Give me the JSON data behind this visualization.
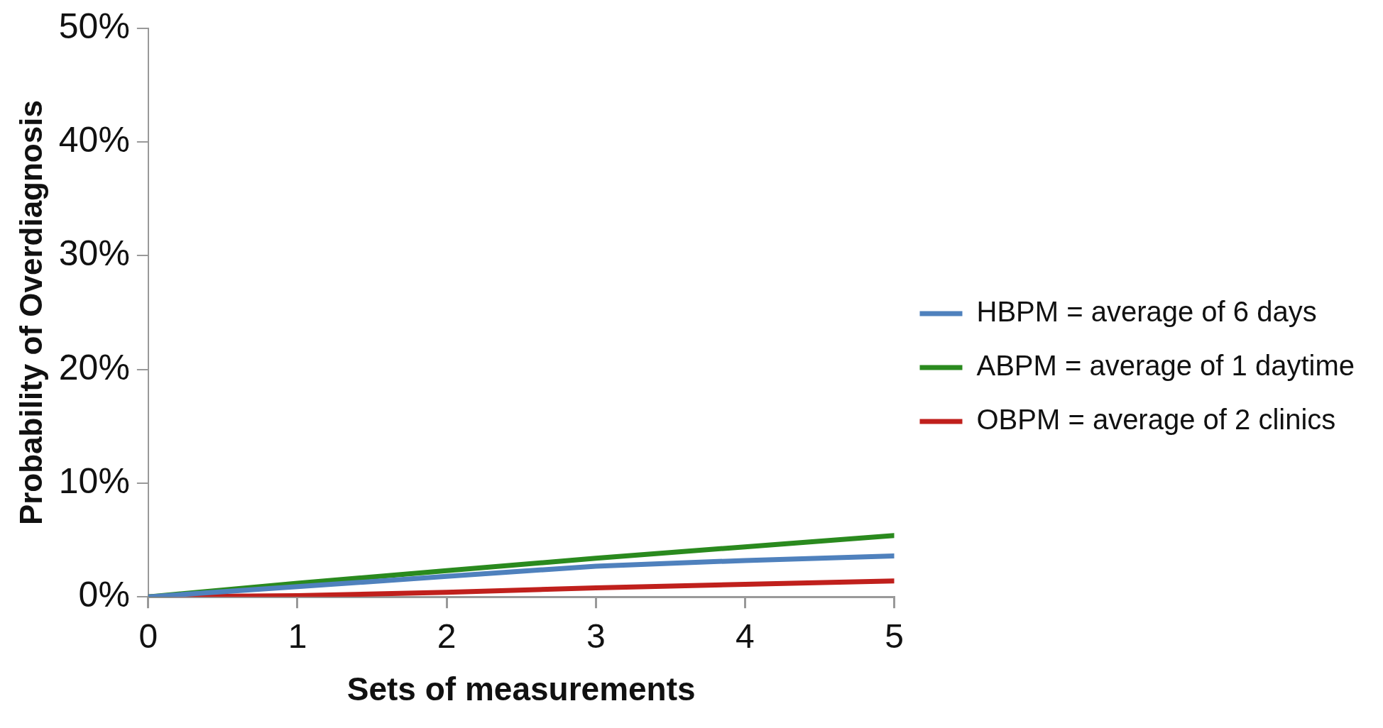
{
  "chart_data": {
    "type": "line",
    "xlabel": "Sets of measurements",
    "ylabel": "Probability of Overdiagnosis",
    "x": [
      0,
      1,
      2,
      3,
      4,
      5
    ],
    "series": [
      {
        "name": "HBPM = average of 6 days",
        "color": "#4f81bd",
        "values": [
          0,
          0.9,
          1.8,
          2.7,
          3.2,
          3.6
        ]
      },
      {
        "name": "ABPM = average of 1 daytime",
        "color": "#2a8a1e",
        "values": [
          0,
          1.2,
          2.3,
          3.4,
          4.4,
          5.4
        ]
      },
      {
        "name": "OBPM = average of 2 clinics",
        "color": "#c0201c",
        "values": [
          0,
          0.1,
          0.4,
          0.8,
          1.1,
          1.4
        ]
      }
    ],
    "xlim": [
      0,
      5
    ],
    "xticks": [
      0,
      1,
      2,
      3,
      4,
      5
    ],
    "ylim": [
      0,
      50
    ],
    "yticks": [
      {
        "value": 0,
        "label": "0%"
      },
      {
        "value": 10,
        "label": "10%"
      },
      {
        "value": 20,
        "label": "20%"
      },
      {
        "value": 30,
        "label": "30%"
      },
      {
        "value": 40,
        "label": "40%"
      },
      {
        "value": 50,
        "label": "50%"
      }
    ],
    "legend": "right",
    "marker": "none",
    "line_style": "solid",
    "grid": false
  }
}
